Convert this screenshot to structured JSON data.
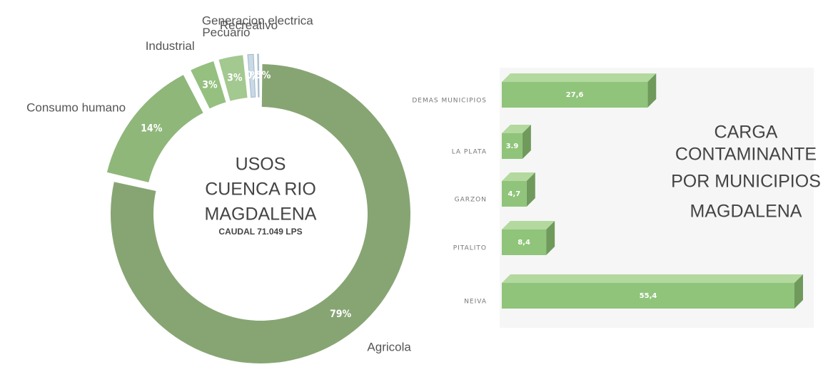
{
  "chart_data": [
    {
      "type": "pie",
      "title_lines": [
        "USOS",
        "CUENCA  RIO",
        "MAGDALENA"
      ],
      "subtitle": "CAUDAL 71.049 LPS",
      "categories": [
        "Agricola",
        "Consumo humano",
        "Industrial",
        "Pecuario",
        "Recreativo",
        "Generacion electrica"
      ],
      "values": [
        79,
        14,
        3,
        3,
        1,
        0.5
      ],
      "value_labels": [
        "79%",
        "14%",
        "3%",
        "3%",
        "1%",
        "0,5%"
      ],
      "colors": [
        "#87a573",
        "#8fb77a",
        "#95c07f",
        "#a3c890",
        "#c9d9e6",
        "#dfe8ef"
      ]
    },
    {
      "type": "bar",
      "orientation": "horizontal",
      "title_lines": [
        "CARGA",
        "CONTAMINANTE",
        "POR MUNICIPIOS",
        "MAGDALENA"
      ],
      "categories": [
        "DEMAS MUNICIPIOS",
        "LA PLATA",
        "GARZON",
        "PITALITO",
        "NEIVA"
      ],
      "values": [
        27.6,
        3.9,
        4.7,
        8.4,
        55.4
      ],
      "value_labels": [
        "27,6",
        "3.9",
        "4,7",
        "8,4",
        "55,4"
      ],
      "color": "#8fc47a"
    }
  ]
}
